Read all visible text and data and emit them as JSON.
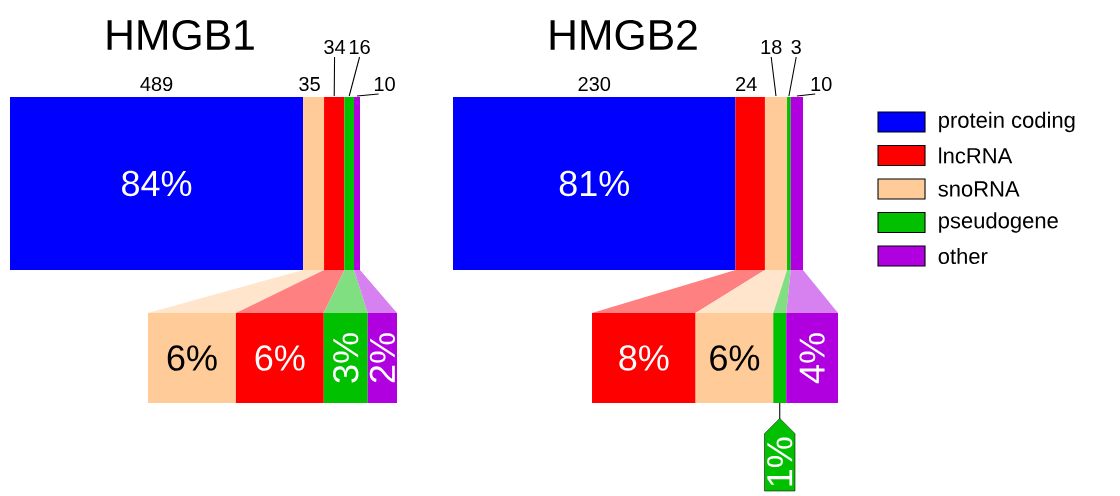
{
  "chart_data": [
    {
      "type": "bar",
      "orientation": "horizontal",
      "stacked": true,
      "title": "HMGB1",
      "categories": [
        null
      ],
      "data_labels": true,
      "annotations": [
        "84%"
      ],
      "series": [
        {
          "color": "#0000ff",
          "values": [
            489
          ]
        },
        {
          "color": "#ffcc99",
          "values": [
            35
          ]
        },
        {
          "color": "#ff0000",
          "values": [
            34
          ]
        },
        {
          "color": "#00c000",
          "values": [
            16
          ]
        },
        {
          "color": "#b000e0",
          "values": [
            10
          ]
        }
      ]
    },
    {
      "type": "bar",
      "orientation": "horizontal",
      "stacked": true,
      "categories": [
        null
      ],
      "series": [
        {
          "color": "#ffcc99",
          "values": [
            6
          ],
          "value_labels": [
            "6%"
          ]
        },
        {
          "color": "#ff0000",
          "values": [
            6
          ],
          "value_labels": [
            "6%"
          ]
        },
        {
          "color": "#00c000",
          "values": [
            3
          ],
          "value_labels": [
            "3%"
          ]
        },
        {
          "color": "#b000e0",
          "values": [
            2
          ],
          "value_labels": [
            "2%"
          ]
        }
      ]
    },
    {
      "type": "bar",
      "orientation": "horizontal",
      "stacked": true,
      "title": "HMGB2",
      "categories": [
        null
      ],
      "data_labels": true,
      "legend": "right",
      "annotations": [
        "81%"
      ],
      "series": [
        {
          "name": "protein coding",
          "color": "#0000ff",
          "values": [
            230
          ]
        },
        {
          "name": "lncRNA",
          "color": "#ff0000",
          "values": [
            24
          ]
        },
        {
          "name": "snoRNA",
          "color": "#ffcc99",
          "values": [
            18
          ]
        },
        {
          "name": "pseudogene",
          "color": "#00c000",
          "values": [
            3
          ]
        },
        {
          "name": "other",
          "color": "#b000e0",
          "values": [
            10
          ]
        }
      ]
    },
    {
      "type": "bar",
      "orientation": "horizontal",
      "stacked": true,
      "categories": [
        null
      ],
      "series": [
        {
          "color": "#ff0000",
          "values": [
            8
          ],
          "value_labels": [
            "8%"
          ]
        },
        {
          "color": "#ffcc99",
          "values": [
            6
          ],
          "value_labels": [
            "6%"
          ]
        },
        {
          "color": "#00c000",
          "values": [
            1
          ],
          "value_labels": [
            "1%"
          ]
        },
        {
          "color": "#b000e0",
          "values": [
            4
          ],
          "value_labels": [
            "4%"
          ]
        }
      ]
    }
  ]
}
